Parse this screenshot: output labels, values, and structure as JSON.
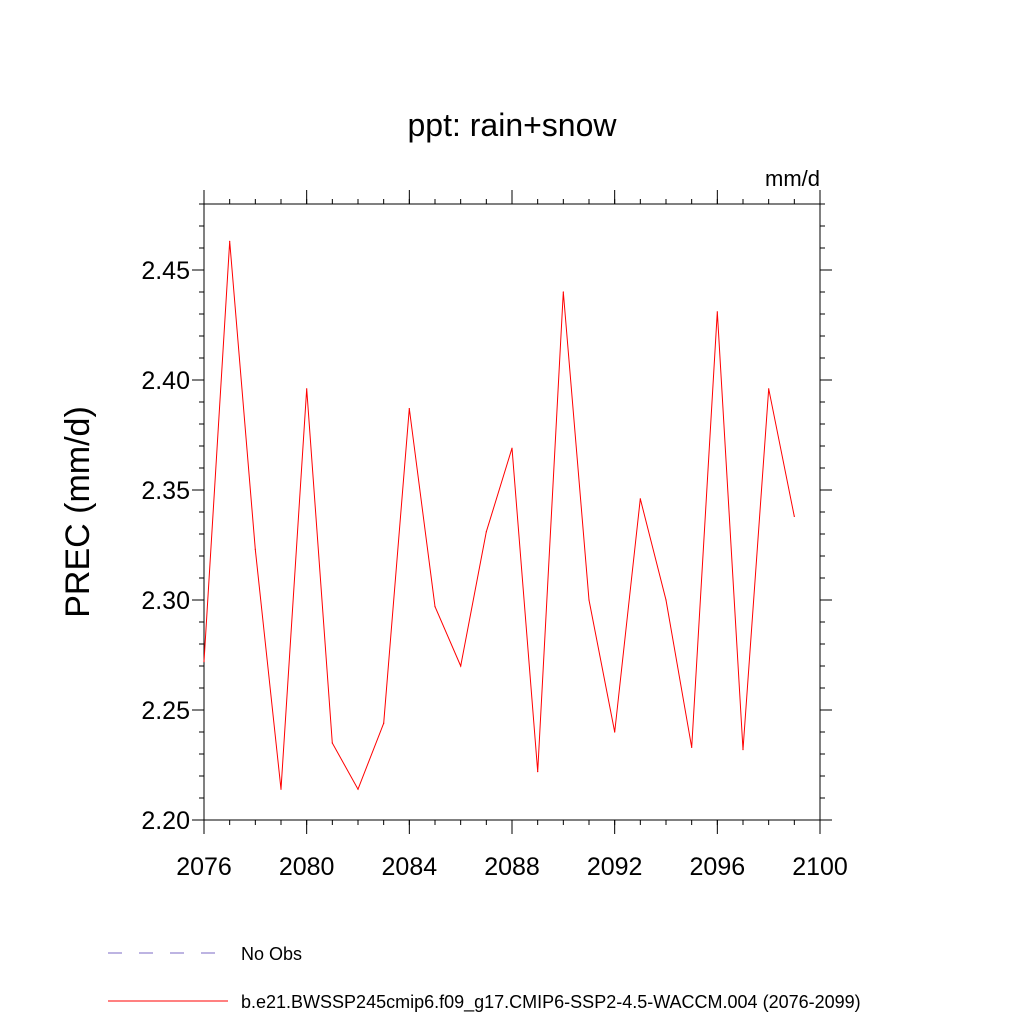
{
  "chart_data": {
    "type": "line",
    "title": "ppt: rain+snow",
    "units_label": "mm/d",
    "xlabel": "",
    "ylabel": "PREC  (mm/d)",
    "xlim": [
      2076,
      2100
    ],
    "ylim": [
      2.2,
      2.48
    ],
    "x_ticks": [
      2076,
      2080,
      2084,
      2088,
      2092,
      2096,
      2100
    ],
    "x_tick_labels": [
      "2076",
      "2080",
      "2084",
      "2088",
      "2092",
      "2096",
      "2100"
    ],
    "y_ticks": [
      2.2,
      2.25,
      2.3,
      2.35,
      2.4,
      2.45
    ],
    "y_tick_labels": [
      "2.20",
      "2.25",
      "2.30",
      "2.35",
      "2.40",
      "2.45"
    ],
    "grid": false,
    "legend_placement": "bottom",
    "series": [
      {
        "name": "b.e21.BWSSP245cmip6.f09_g17.CMIP6-SSP2-4.5-WACCM.004 (2076-2099)",
        "color": "#ff0000",
        "style": "solid",
        "x": [
          2076,
          2077,
          2078,
          2079,
          2080,
          2081,
          2082,
          2083,
          2084,
          2085,
          2086,
          2087,
          2088,
          2089,
          2090,
          2091,
          2092,
          2093,
          2094,
          2095,
          2096,
          2097,
          2098,
          2099
        ],
        "y": [
          2.272,
          2.463,
          2.323,
          2.214,
          2.396,
          2.235,
          2.214,
          2.244,
          2.387,
          2.297,
          2.27,
          2.331,
          2.369,
          2.222,
          2.44,
          2.3,
          2.24,
          2.346,
          2.3,
          2.233,
          2.431,
          2.232,
          2.396,
          2.338
        ]
      }
    ],
    "legend": [
      {
        "label": "No Obs",
        "color": "#7b68c6",
        "style": "dashed"
      },
      {
        "label": "b.e21.BWSSP245cmip6.f09_g17.CMIP6-SSP2-4.5-WACCM.004 (2076-2099)",
        "color": "#ff0000",
        "style": "solid"
      }
    ]
  }
}
